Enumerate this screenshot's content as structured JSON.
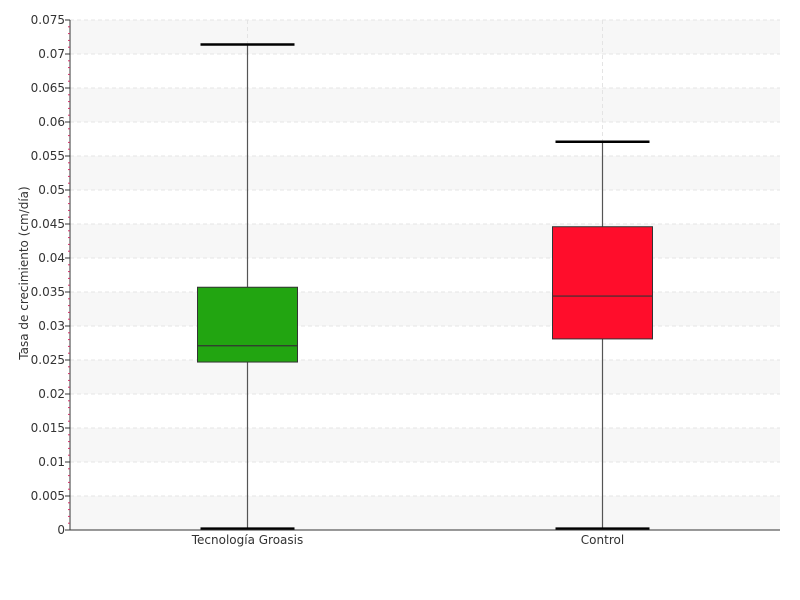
{
  "chart_data": {
    "type": "boxplot",
    "title": "",
    "xlabel": "",
    "ylabel": "Tasa de crecimiento (cm/día)",
    "ylim": [
      0,
      0.075
    ],
    "yticks": [
      "0",
      "0.005",
      "0.01",
      "0.015",
      "0.02",
      "0.025",
      "0.03",
      "0.035",
      "0.04",
      "0.045",
      "0.05",
      "0.055",
      "0.06",
      "0.065",
      "0.07",
      "0.075"
    ],
    "ytick_values": [
      0,
      0.005,
      0.01,
      0.015,
      0.02,
      0.025,
      0.03,
      0.035,
      0.04,
      0.045,
      0.05,
      0.055,
      0.06,
      0.065,
      0.07,
      0.075
    ],
    "categories": [
      "Tecnología Groasis",
      "Control"
    ],
    "boxes": [
      {
        "label": "Tecnología Groasis",
        "min": 0.0002,
        "q1": 0.0247,
        "median": 0.0271,
        "q3": 0.0357,
        "max": 0.0714,
        "color": "#22a511"
      },
      {
        "label": "Control",
        "min": 0.0002,
        "q1": 0.0281,
        "median": 0.0344,
        "q3": 0.0446,
        "max": 0.0571,
        "color": "#ff0d2b"
      }
    ],
    "grid": true,
    "band_color": "#f7f7f7",
    "grid_color": "#e4e4e4",
    "legend": "none"
  }
}
